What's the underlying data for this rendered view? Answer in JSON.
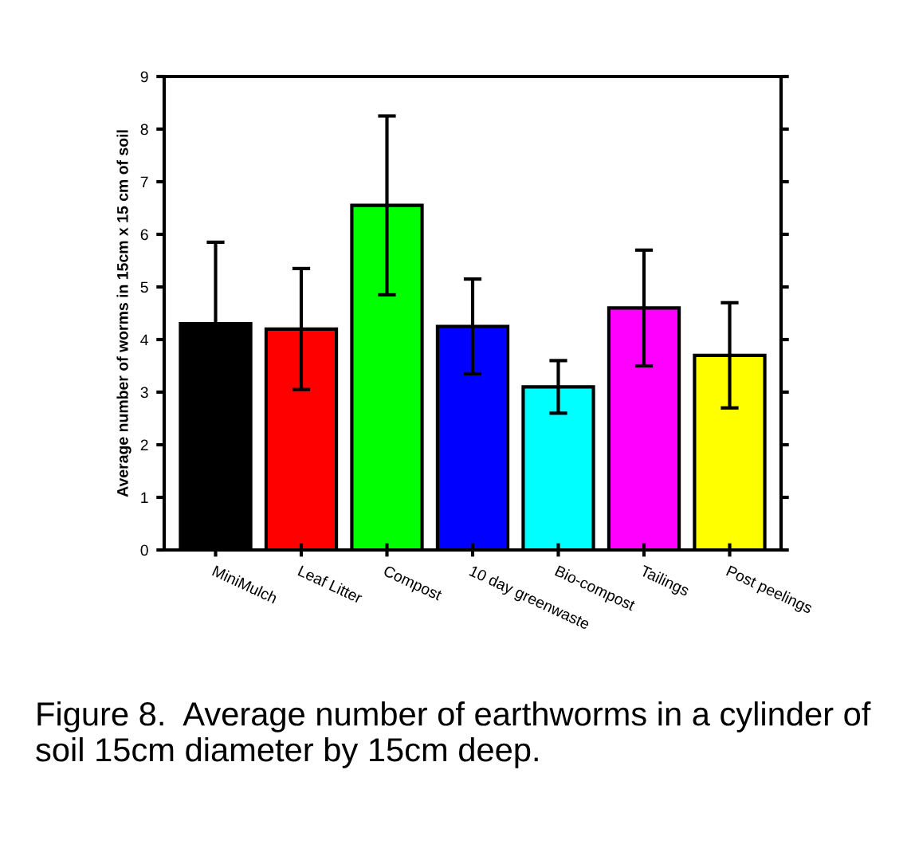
{
  "chart_data": {
    "type": "bar",
    "ylabel": "Average number of worms in 15cm x 15 cm of soil",
    "categories": [
      "MiniMulch",
      "Leaf Litter",
      "Compost",
      "10 day greenwaste",
      "Bio-compost",
      "Tailings",
      "Post peelings"
    ],
    "values": [
      4.3,
      4.2,
      6.55,
      4.25,
      3.1,
      4.6,
      3.7
    ],
    "errors": [
      1.55,
      1.15,
      1.7,
      0.9,
      0.5,
      1.1,
      1.0
    ],
    "colors": [
      "#000000",
      "#ff0000",
      "#00ff00",
      "#0000ff",
      "#00ffff",
      "#ff00ff",
      "#ffff00"
    ],
    "ylim": [
      0,
      9
    ],
    "yticks": [
      0,
      1,
      2,
      3,
      4,
      5,
      6,
      7,
      8,
      9
    ],
    "grid": false,
    "legend": false,
    "annotations": [
      "Figure 8.  Average number of earthworms in a cylinder of soil 15cm diameter by 15cm deep."
    ]
  }
}
